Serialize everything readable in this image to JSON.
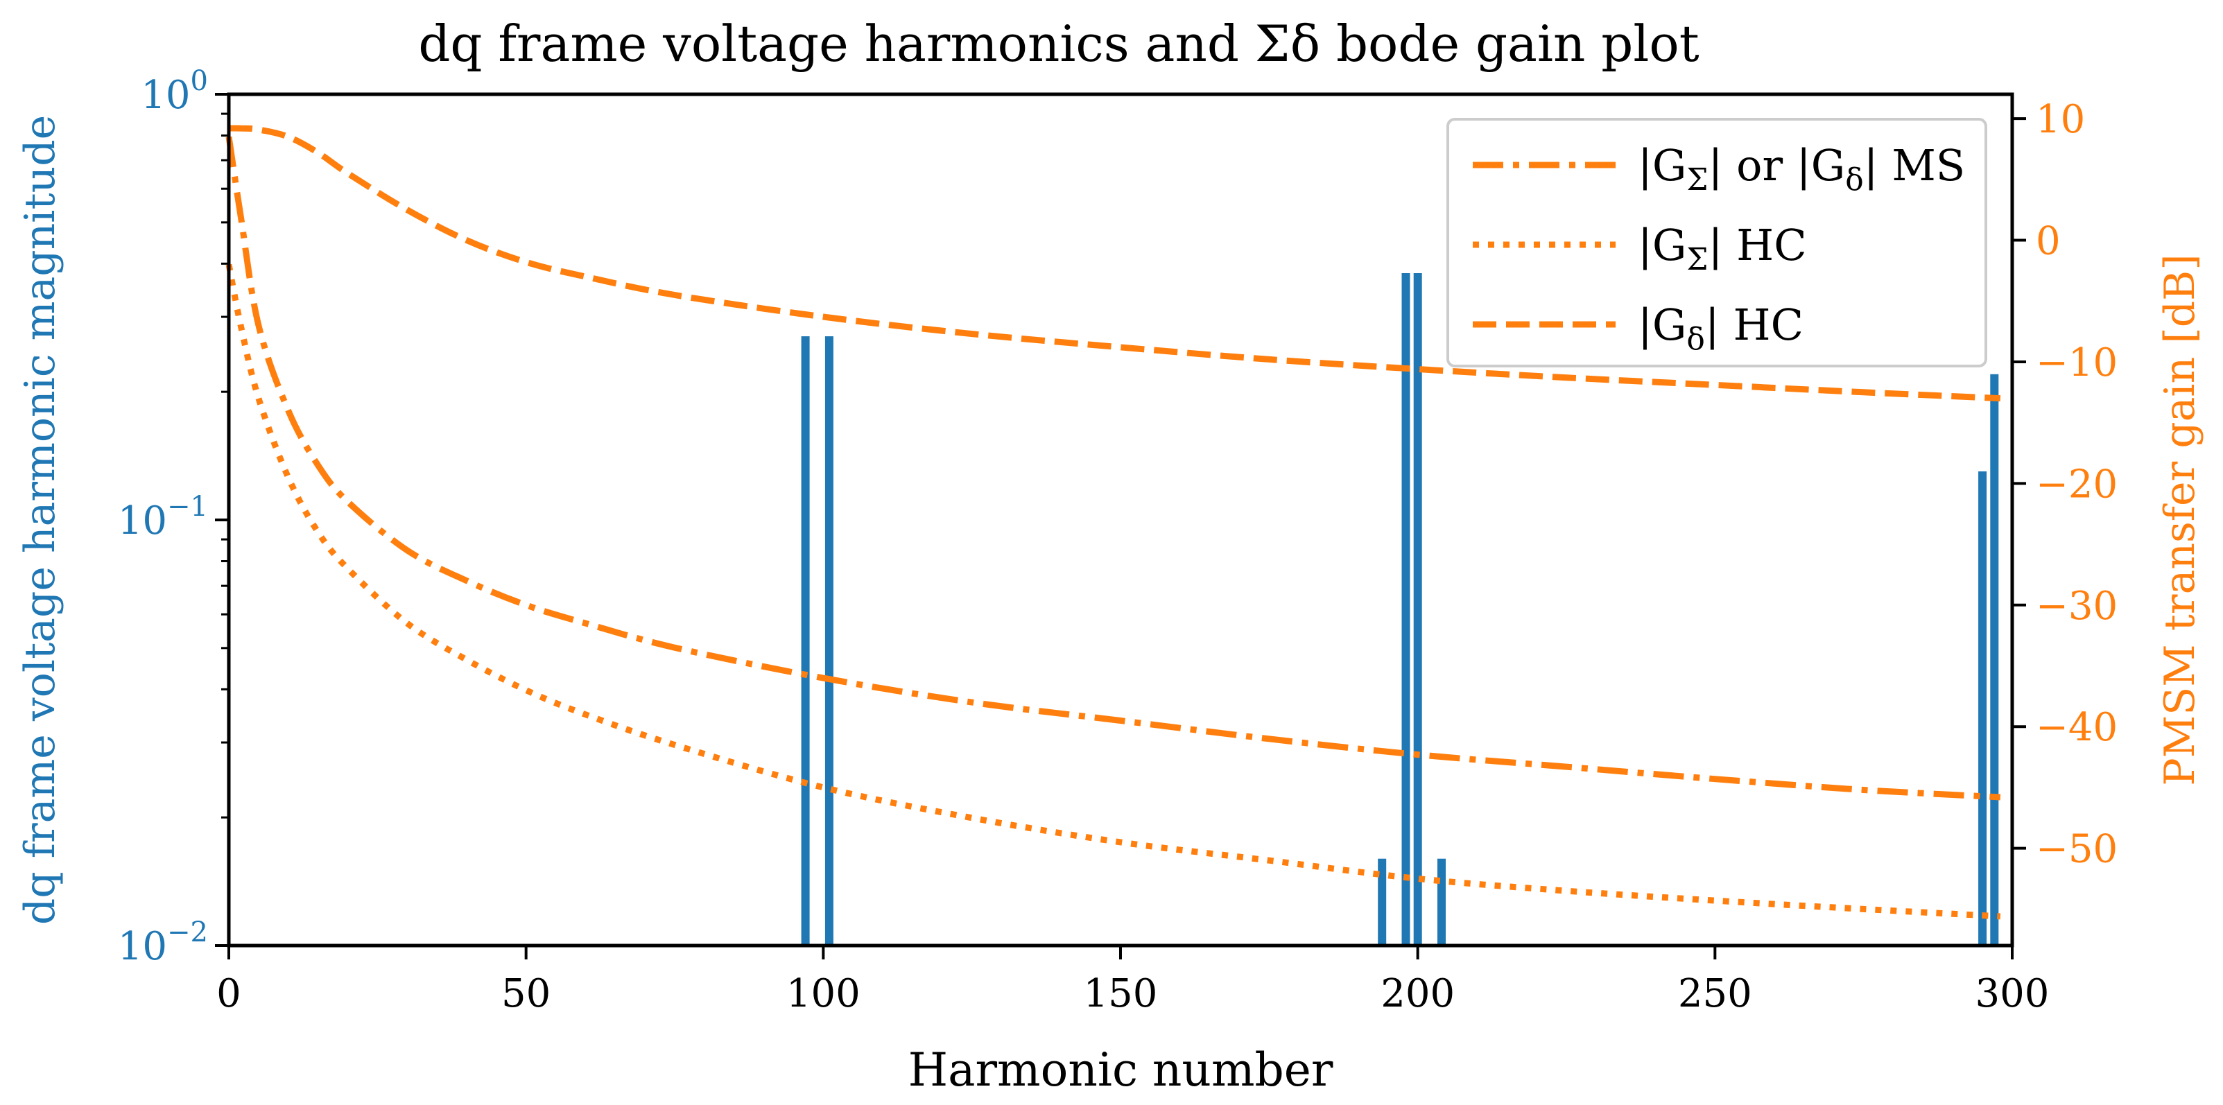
{
  "chart_data": {
    "type": "bar",
    "title": "dq frame voltage harmonics and Σδ bode gain plot",
    "xlabel": "Harmonic number",
    "ylabel_left": "dq frame voltage harmonic magnitude",
    "ylabel_right": "PMSM transfer gain [dB]",
    "xlim": [
      0,
      300
    ],
    "ylim_left": [
      0.01,
      1.0
    ],
    "yscale_left": "log",
    "ylim_right": [
      -58,
      12
    ],
    "x_ticks": [
      "0",
      "50",
      "100",
      "150",
      "200",
      "250",
      "300"
    ],
    "x_tick_values": [
      0,
      50,
      100,
      150,
      200,
      250,
      300
    ],
    "y_left_ticks": [
      {
        "base": "10",
        "exp": "0",
        "value": 1.0
      },
      {
        "base": "10",
        "exp": "−1",
        "value": 0.1
      },
      {
        "base": "10",
        "exp": "−2",
        "value": 0.01
      }
    ],
    "y_right_ticks": [
      "10",
      "0",
      "−10",
      "−20",
      "−30",
      "−40",
      "−50"
    ],
    "y_right_tick_values": [
      10,
      0,
      -10,
      -20,
      -30,
      -40,
      -50
    ],
    "bars": {
      "name": "dq frame voltage harmonics",
      "color": "#1f77b4",
      "x": [
        97,
        101,
        194,
        198,
        200,
        204,
        295,
        297
      ],
      "values": [
        0.27,
        0.27,
        0.016,
        0.38,
        0.38,
        0.016,
        0.13,
        0.22
      ]
    },
    "series": [
      {
        "name": "|GΣ| or |Gδ| MS",
        "style": "dashdot",
        "color": "#ff7f0e",
        "x": [
          0,
          2,
          5,
          10,
          15,
          20,
          30,
          40,
          50,
          60,
          75,
          100,
          125,
          150,
          175,
          200,
          225,
          250,
          275,
          298
        ],
        "values": [
          8.5,
          2,
          -7,
          -14,
          -18.5,
          -21.5,
          -25.5,
          -28,
          -30,
          -31.5,
          -33.5,
          -36,
          -38,
          -39.5,
          -41,
          -42.3,
          -43.3,
          -44.3,
          -45.2,
          -45.8
        ]
      },
      {
        "name": "|GΣ| HC",
        "style": "dotted",
        "color": "#ff7f0e",
        "x": [
          0,
          2,
          5,
          10,
          15,
          20,
          30,
          40,
          50,
          60,
          75,
          100,
          125,
          150,
          175,
          200,
          225,
          250,
          275,
          298
        ],
        "values": [
          -2,
          -7,
          -13,
          -19.5,
          -24,
          -27,
          -31.5,
          -34.5,
          -37,
          -39,
          -41.5,
          -45,
          -47.5,
          -49.5,
          -51,
          -52.5,
          -53.5,
          -54.3,
          -55,
          -55.6
        ]
      },
      {
        "name": "|Gδ| HC",
        "style": "dashed",
        "color": "#ff7f0e",
        "x": [
          0,
          2,
          5,
          10,
          15,
          20,
          30,
          40,
          50,
          60,
          75,
          100,
          125,
          150,
          175,
          200,
          225,
          250,
          275,
          298
        ],
        "values": [
          9.2,
          9.2,
          9.1,
          8.5,
          7.2,
          5.5,
          2.5,
          0,
          -1.8,
          -3,
          -4.5,
          -6.3,
          -7.7,
          -8.8,
          -9.8,
          -10.6,
          -11.3,
          -11.9,
          -12.5,
          -13
        ]
      }
    ],
    "legend": {
      "placement": "top-right",
      "entries": [
        {
          "prefix": "|G",
          "sub": "Σ",
          "mid": "| or |G",
          "sub2": "δ",
          "suffix": "| MS"
        },
        {
          "prefix": "|G",
          "sub": "Σ",
          "suffix": "| HC"
        },
        {
          "prefix": "|G",
          "sub": "δ",
          "suffix": "| HC"
        }
      ]
    }
  }
}
